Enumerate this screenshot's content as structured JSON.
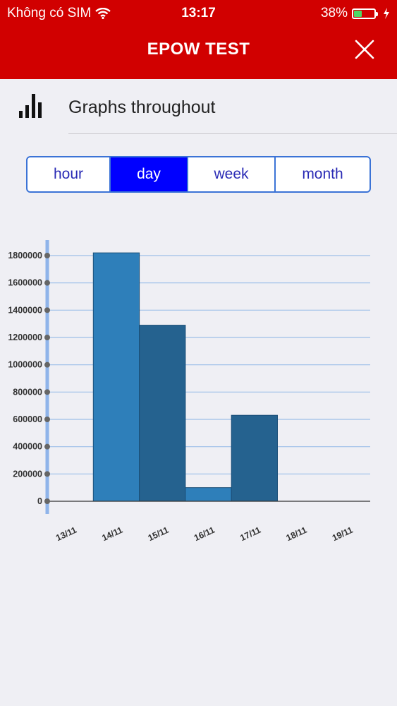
{
  "status_bar": {
    "carrier": "Không có SIM",
    "time": "13:17",
    "battery": "38%",
    "battery_level": 0.38
  },
  "header": {
    "title": "EPOW TEST"
  },
  "section": {
    "title": "Graphs throughout"
  },
  "period_tabs": [
    {
      "label": "hour",
      "active": false
    },
    {
      "label": "day",
      "active": true
    },
    {
      "label": "week",
      "active": false
    },
    {
      "label": "month",
      "active": false
    }
  ],
  "colors": {
    "header_bg": "#d10000",
    "active_tab": "#0000ff",
    "bar": "#2a6fa8",
    "grid": "#9ebfe8"
  },
  "chart_data": {
    "type": "bar",
    "categories": [
      "13/11",
      "14/11",
      "15/11",
      "16/11",
      "17/11",
      "18/11",
      "19/11"
    ],
    "values": [
      0,
      1820000,
      1290000,
      100000,
      630000,
      0,
      0
    ],
    "title": "",
    "xlabel": "",
    "ylabel": "",
    "ylim": [
      0,
      1800000
    ],
    "yticks": [
      0,
      200000,
      400000,
      600000,
      800000,
      1000000,
      1200000,
      1400000,
      1600000,
      1800000
    ],
    "grid": true,
    "legend": "none"
  }
}
